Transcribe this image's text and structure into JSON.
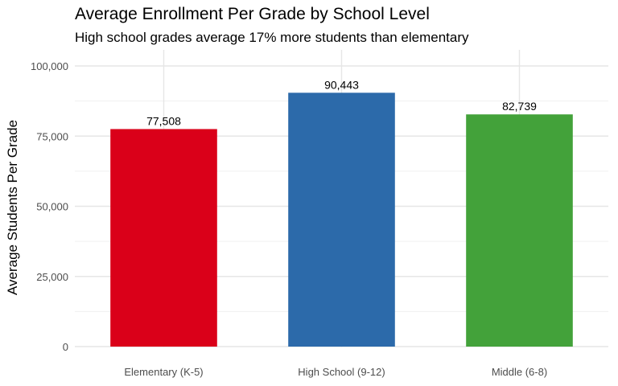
{
  "chart_data": {
    "type": "bar",
    "title": "Average Enrollment Per Grade by School Level",
    "subtitle": "High school grades average 17% more students than elementary",
    "xlabel": "",
    "ylabel": "Average Students Per Grade",
    "categories": [
      "Elementary (K-5)",
      "High School (9-12)",
      "Middle (6-8)"
    ],
    "values": [
      77508,
      90443,
      82739
    ],
    "value_labels": [
      "77,508",
      "90,443",
      "82,739"
    ],
    "colors": [
      "#da0019",
      "#2c6aaa",
      "#43a23a"
    ],
    "ylim": [
      0,
      100000
    ],
    "yticks": [
      0,
      25000,
      50000,
      75000,
      100000
    ],
    "ytick_labels": [
      "0",
      "25,000",
      "50,000",
      "75,000",
      "100,000"
    ],
    "grid": true,
    "legend": "none"
  }
}
